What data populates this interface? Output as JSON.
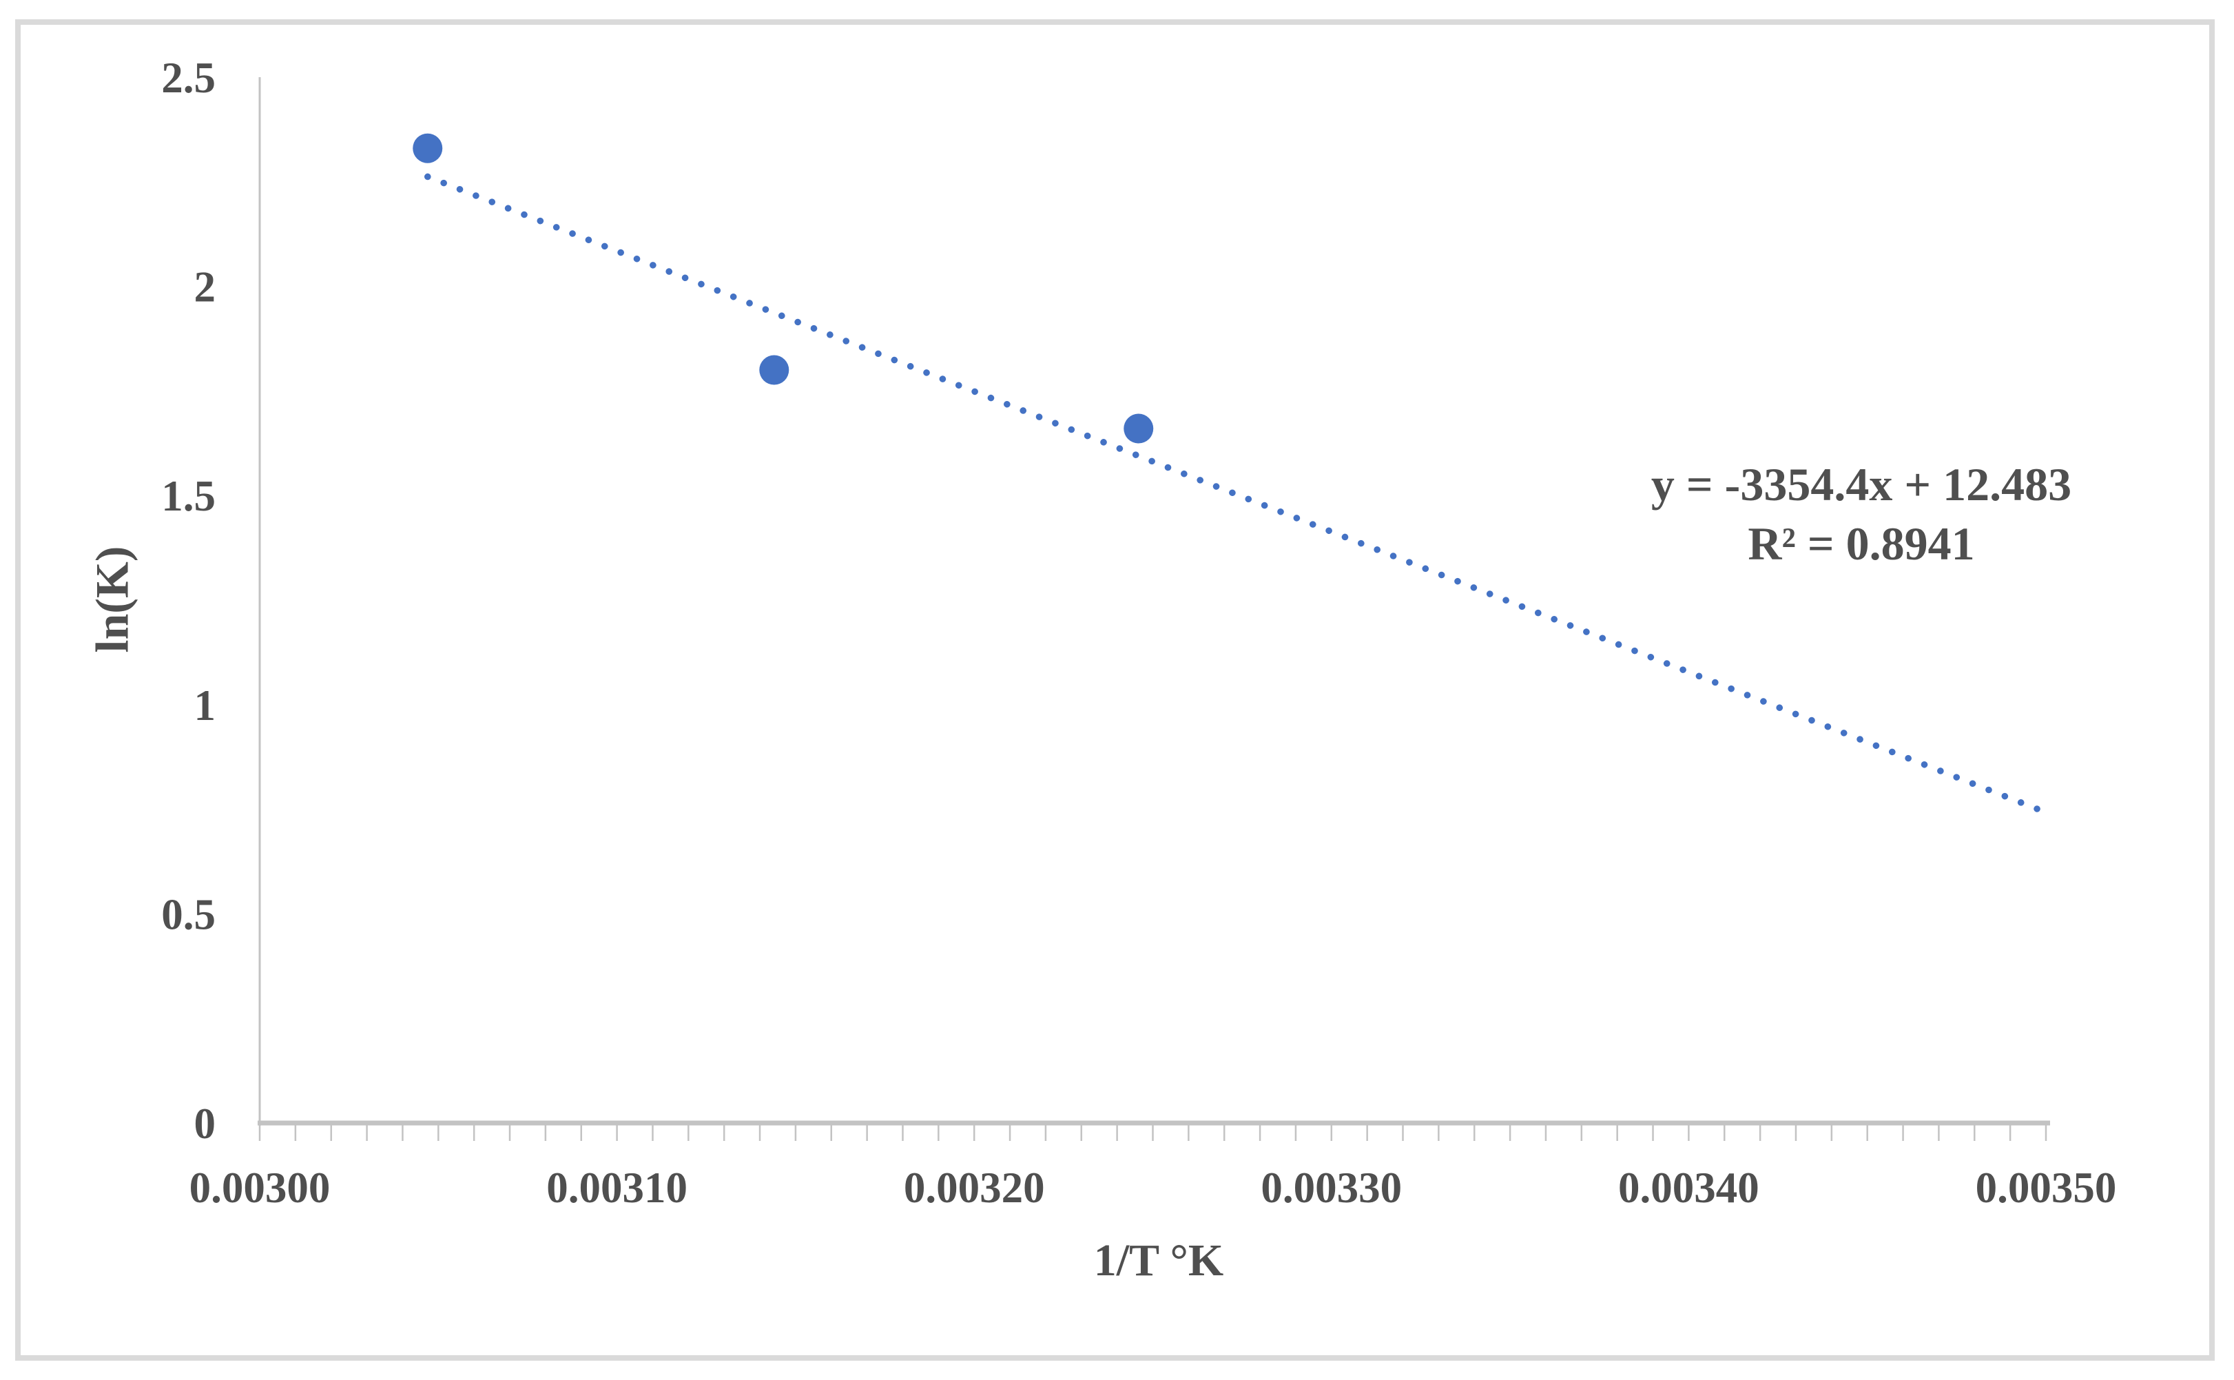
{
  "chart_data": {
    "type": "scatter",
    "title": "",
    "xlabel": "1/T °K",
    "ylabel": "ln(K)",
    "points": [
      {
        "x": 0.003047,
        "y": 2.33
      },
      {
        "x": 0.003144,
        "y": 1.8
      },
      {
        "x": 0.003246,
        "y": 1.66
      }
    ],
    "trendline": {
      "type": "linear",
      "style": "dotted",
      "slope": -3354.4,
      "intercept": 12.483,
      "r_squared": 0.8941,
      "equation_label": "y = -3354.4x + 12.483",
      "r2_label": "R² = 0.8941",
      "x_start": 0.003047,
      "x_end": 0.003499
    },
    "xlim": [
      0.003,
      0.0035
    ],
    "ylim": [
      0,
      2.5
    ],
    "x_ticks": {
      "values": [
        0.003,
        0.0031,
        0.0032,
        0.0033,
        0.0034,
        0.0035
      ],
      "labels": [
        "0.00300",
        "0.00310",
        "0.00320",
        "0.00330",
        "0.00340",
        "0.00350"
      ],
      "minor_step": 1e-05
    },
    "y_ticks": {
      "values": [
        0,
        0.5,
        1,
        1.5,
        2,
        2.5
      ],
      "labels": [
        "0",
        "0.5",
        "1",
        "1.5",
        "2",
        "2.5"
      ]
    },
    "grid": false,
    "legend": false,
    "colors": {
      "marker": "#4472C4",
      "trendline": "#4472C4",
      "axis_line": "#C3C3C3",
      "text": "#4F4F4F",
      "frame_border": "#DADADA",
      "background": "#FFFFFF"
    }
  }
}
